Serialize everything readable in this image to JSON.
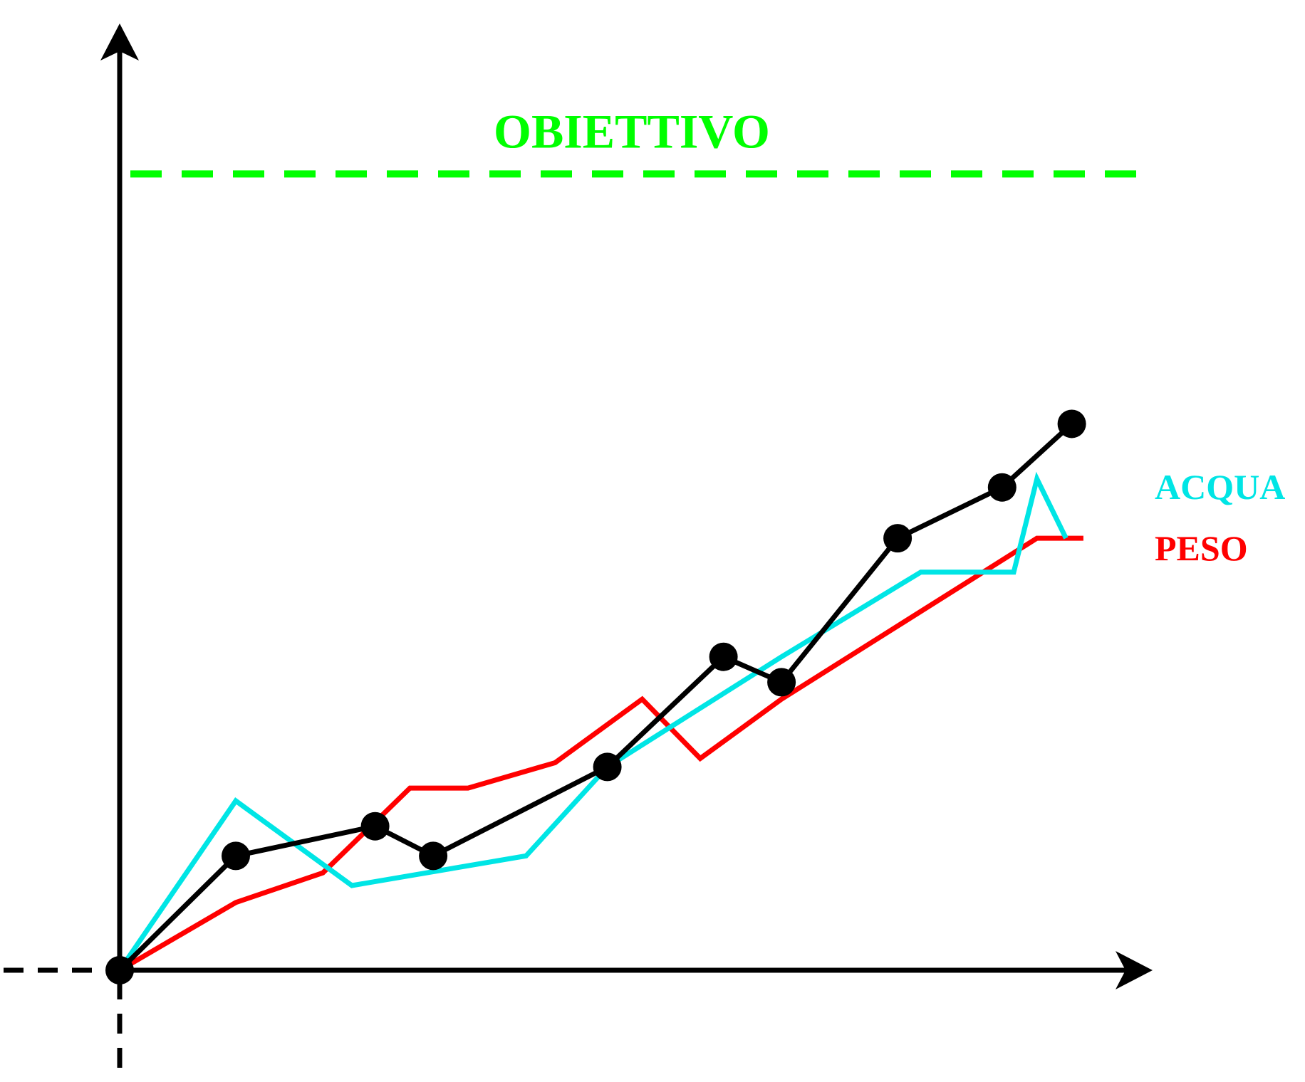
{
  "chart_data": {
    "type": "line",
    "title": "",
    "xlabel": "",
    "ylabel": "",
    "grid": false,
    "target": {
      "label": "OBIETTIVO",
      "value": 94,
      "color": "#00ff00"
    },
    "series": [
      {
        "key": "main",
        "color": "#000000",
        "markers": true,
        "points": [
          [
            0,
            0
          ],
          [
            10,
            13.5
          ],
          [
            22,
            17
          ],
          [
            27,
            13.5
          ],
          [
            42,
            24
          ],
          [
            52,
            37
          ],
          [
            57,
            34
          ],
          [
            67,
            51
          ],
          [
            76,
            57
          ],
          [
            82,
            64.5
          ]
        ]
      },
      {
        "key": "acqua",
        "name": "ACQUA",
        "color": "#00e5e5",
        "markers": false,
        "points": [
          [
            0,
            0
          ],
          [
            10,
            20
          ],
          [
            20,
            10
          ],
          [
            35,
            13.5
          ],
          [
            42,
            24
          ],
          [
            57,
            37
          ],
          [
            69,
            47
          ],
          [
            77,
            47
          ],
          [
            79,
            58
          ],
          [
            81.5,
            51
          ]
        ]
      },
      {
        "key": "peso",
        "name": "PESO",
        "color": "#ff0000",
        "markers": false,
        "points": [
          [
            0,
            0
          ],
          [
            10,
            8
          ],
          [
            17.5,
            11.5
          ],
          [
            25,
            21.5
          ],
          [
            30,
            21.5
          ],
          [
            37.5,
            24.5
          ],
          [
            45,
            32
          ],
          [
            50,
            25
          ],
          [
            57,
            32
          ],
          [
            79,
            51
          ],
          [
            83,
            51
          ]
        ]
      }
    ],
    "legend": [
      "ACQUA",
      "PESO"
    ]
  }
}
